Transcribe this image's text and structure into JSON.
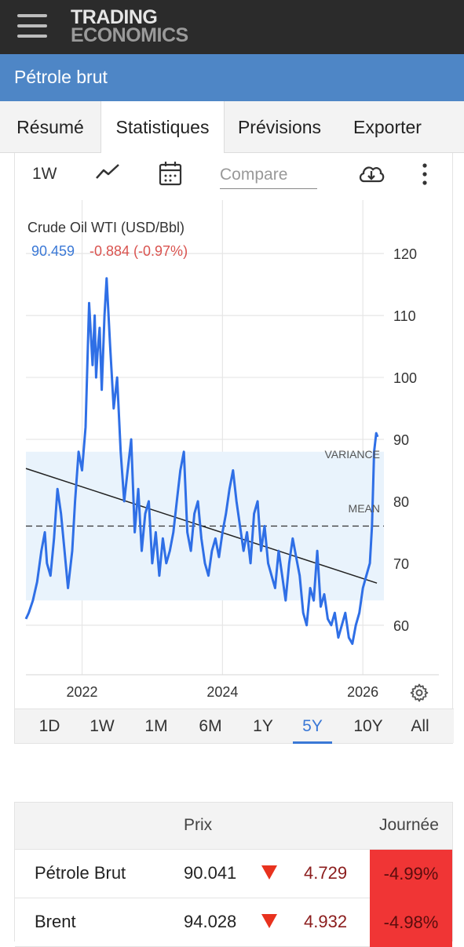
{
  "header": {
    "logo_line1": "TRADING",
    "logo_line2": "ECONOMICS",
    "menu_icon": "hamburger-menu-icon"
  },
  "page": {
    "title": "Pétrole brut"
  },
  "tabs": [
    {
      "label": "Résumé",
      "active": false
    },
    {
      "label": "Statistiques",
      "active": true
    },
    {
      "label": "Prévisions",
      "active": false
    },
    {
      "label": "Exporter",
      "active": false
    }
  ],
  "toolbar": {
    "interval_label": "1W",
    "chart_type_icon": "line-chart-icon",
    "calendar_icon": "calendar-icon",
    "compare_placeholder": "Compare",
    "download_icon": "cloud-download-icon",
    "more_icon": "more-vertical-icon",
    "settings_icon": "gear-icon"
  },
  "chart_data": {
    "type": "line",
    "title": "Crude Oil WTI (USD/Bbl)",
    "last_value": "90.459",
    "change_text": "-0.884 (-0.97%)",
    "x_ticks": [
      "2022",
      "2024",
      "2026"
    ],
    "y_ticks": [
      60,
      70,
      80,
      90,
      100,
      110,
      120
    ],
    "ylim": [
      52,
      128
    ],
    "xlim": [
      2021.2,
      2026.3
    ],
    "grid": true,
    "annotations": {
      "variance_label": "VARIANCE",
      "mean_label": "MEAN"
    },
    "mean": 76,
    "variance_band": [
      64,
      88
    ],
    "trendline": {
      "start": [
        2021.2,
        85.3
      ],
      "end": [
        2026.2,
        66.8
      ]
    },
    "series": [
      {
        "x": [
          2021.2,
          2021.24,
          2021.3,
          2021.36,
          2021.42,
          2021.47,
          2021.5,
          2021.55,
          2021.6,
          2021.65,
          2021.7,
          2021.75,
          2021.8,
          2021.86,
          2021.9,
          2021.95,
          2022.0,
          2022.05,
          2022.1,
          2022.15,
          2022.18,
          2022.2,
          2022.22,
          2022.25,
          2022.28,
          2022.32,
          2022.35,
          2022.4,
          2022.45,
          2022.5,
          2022.55,
          2022.6,
          2022.65,
          2022.7,
          2022.75,
          2022.8,
          2022.85,
          2022.9,
          2022.95,
          2023.0,
          2023.05,
          2023.1,
          2023.15,
          2023.2,
          2023.25,
          2023.3,
          2023.35,
          2023.4,
          2023.45,
          2023.5,
          2023.55,
          2023.6,
          2023.65,
          2023.7,
          2023.75,
          2023.8,
          2023.85,
          2023.9,
          2023.95,
          2024.0,
          2024.05,
          2024.1,
          2024.15,
          2024.2,
          2024.25,
          2024.3,
          2024.35,
          2024.4,
          2024.45,
          2024.5,
          2024.55,
          2024.6,
          2024.65,
          2024.7,
          2024.75,
          2024.8,
          2024.85,
          2024.9,
          2024.95,
          2025.0,
          2025.05,
          2025.1,
          2025.15,
          2025.2,
          2025.25,
          2025.3,
          2025.35,
          2025.4,
          2025.45,
          2025.5,
          2025.55,
          2025.6,
          2025.65,
          2025.7,
          2025.75,
          2025.8,
          2025.85,
          2025.9,
          2025.95,
          2026.0,
          2026.05,
          2026.1,
          2026.13,
          2026.16,
          2026.19,
          2026.21
        ],
        "y": [
          61,
          62,
          64,
          67,
          72,
          75,
          70,
          68,
          74,
          82,
          78,
          72,
          66,
          72,
          80,
          88,
          85,
          92,
          112,
          102,
          110,
          100,
          104,
          108,
          98,
          110,
          116,
          105,
          95,
          100,
          88,
          80,
          85,
          90,
          75,
          82,
          72,
          78,
          80,
          70,
          75,
          68,
          74,
          70,
          72,
          75,
          80,
          85,
          88,
          75,
          72,
          78,
          80,
          74,
          70,
          68,
          72,
          74,
          71,
          75,
          78,
          82,
          85,
          80,
          76,
          72,
          75,
          70,
          78,
          80,
          72,
          76,
          70,
          68,
          66,
          72,
          68,
          64,
          70,
          74,
          71,
          68,
          62,
          60,
          66,
          64,
          72,
          63,
          65,
          61,
          60,
          62,
          58,
          60,
          62,
          58,
          57,
          60,
          62,
          66,
          68,
          70,
          76,
          88,
          91,
          90.4
        ]
      }
    ]
  },
  "ranges": [
    {
      "label": "1D",
      "active": false
    },
    {
      "label": "1W",
      "active": false
    },
    {
      "label": "1M",
      "active": false
    },
    {
      "label": "6M",
      "active": false
    },
    {
      "label": "1Y",
      "active": false
    },
    {
      "label": "5Y",
      "active": true
    },
    {
      "label": "10Y",
      "active": false
    },
    {
      "label": "All",
      "active": false
    }
  ],
  "table": {
    "headers": {
      "price": "Prix",
      "day": "Journée"
    },
    "rows": [
      {
        "name": "Pétrole Brut",
        "price": "90.041",
        "change": "4.729",
        "pct": "-4.99%"
      },
      {
        "name": "Brent",
        "price": "94.028",
        "change": "4.932",
        "pct": "-4.98%"
      }
    ]
  },
  "colors": {
    "accent": "#3a78d6",
    "title_bar": "#4e86c6",
    "line": "#2f6fe6",
    "negative": "#d9534f",
    "negative_bg": "#f03535"
  }
}
